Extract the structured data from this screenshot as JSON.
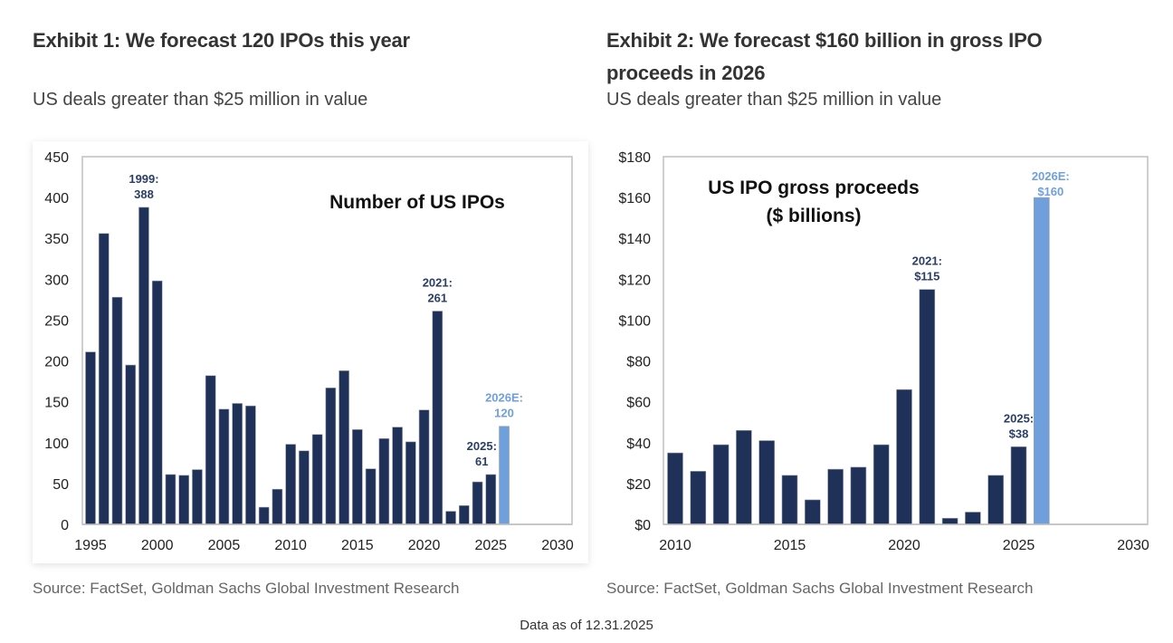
{
  "exhibit1": {
    "title": "Exhibit 1: We forecast 120 IPOs this year",
    "subtitle": "US deals greater than $25 million in value",
    "source": "Source: FactSet, Goldman Sachs Global Investment Research"
  },
  "exhibit2": {
    "title_line1": "Exhibit 2: We forecast $160 billion in gross IPO",
    "title_line2": "proceeds in 2026",
    "subtitle": "US deals greater than $25 million in value",
    "source": "Source: FactSet, Goldman Sachs Global Investment Research"
  },
  "footer": {
    "as_of": "Data as of 12.31.2025"
  },
  "colors": {
    "actual": "#1f3159",
    "estimate": "#6fa0dc",
    "frame": "#bfbfbf"
  },
  "chart_data": [
    {
      "type": "bar",
      "title": "Number of US IPOs",
      "xlabel": "",
      "ylabel": "",
      "xlim": [
        1995,
        2030
      ],
      "ylim": [
        0,
        450
      ],
      "xticks": [
        "1995",
        "2000",
        "2005",
        "2010",
        "2015",
        "2020",
        "2025",
        "2030"
      ],
      "yticks": [
        "0",
        "50",
        "100",
        "150",
        "200",
        "250",
        "300",
        "350",
        "400",
        "450"
      ],
      "grid": false,
      "categories": [
        1995,
        1996,
        1997,
        1998,
        1999,
        2000,
        2001,
        2002,
        2003,
        2004,
        2005,
        2006,
        2007,
        2008,
        2009,
        2010,
        2011,
        2012,
        2013,
        2014,
        2015,
        2016,
        2017,
        2018,
        2019,
        2020,
        2021,
        2022,
        2023,
        2024,
        2025,
        2026
      ],
      "values": [
        211,
        356,
        278,
        195,
        388,
        298,
        61,
        60,
        67,
        182,
        141,
        148,
        145,
        21,
        43,
        98,
        90,
        110,
        167,
        188,
        116,
        68,
        105,
        119,
        101,
        140,
        261,
        16,
        23,
        52,
        61,
        120
      ],
      "estimate_categories": [
        2026
      ],
      "annotations": [
        {
          "x": 1999,
          "line1": "1999:",
          "line2": "388",
          "style": "actual"
        },
        {
          "x": 2021,
          "line1": "2021:",
          "line2": "261",
          "style": "actual"
        },
        {
          "x": 2025,
          "line1": "2025:",
          "line2": "61",
          "style": "actual"
        },
        {
          "x": 2026,
          "line1": "2026E:",
          "line2": "120",
          "style": "estimate"
        }
      ]
    },
    {
      "type": "bar",
      "title_line1": "US IPO gross proceeds",
      "title_line2": "($ billions)",
      "xlabel": "",
      "ylabel": "",
      "xlim": [
        2010,
        2030
      ],
      "ylim": [
        0,
        180
      ],
      "xticks": [
        "2010",
        "2015",
        "2020",
        "2025",
        "2030"
      ],
      "yticks": [
        "$0",
        "$20",
        "$40",
        "$60",
        "$80",
        "$100",
        "$120",
        "$140",
        "$160",
        "$180"
      ],
      "grid": false,
      "categories": [
        2010,
        2011,
        2012,
        2013,
        2014,
        2015,
        2016,
        2017,
        2018,
        2019,
        2020,
        2021,
        2022,
        2023,
        2024,
        2025,
        2026
      ],
      "values": [
        35,
        26,
        39,
        46,
        41,
        24,
        12,
        27,
        28,
        39,
        66,
        115,
        3,
        6,
        24,
        38,
        160
      ],
      "estimate_categories": [
        2026
      ],
      "annotations": [
        {
          "x": 2021,
          "line1": "2021:",
          "line2": "$115",
          "style": "actual"
        },
        {
          "x": 2025,
          "line1": "2025:",
          "line2": "$38",
          "style": "actual"
        },
        {
          "x": 2026,
          "line1": "2026E:",
          "line2": "$160",
          "style": "estimate"
        }
      ]
    }
  ]
}
